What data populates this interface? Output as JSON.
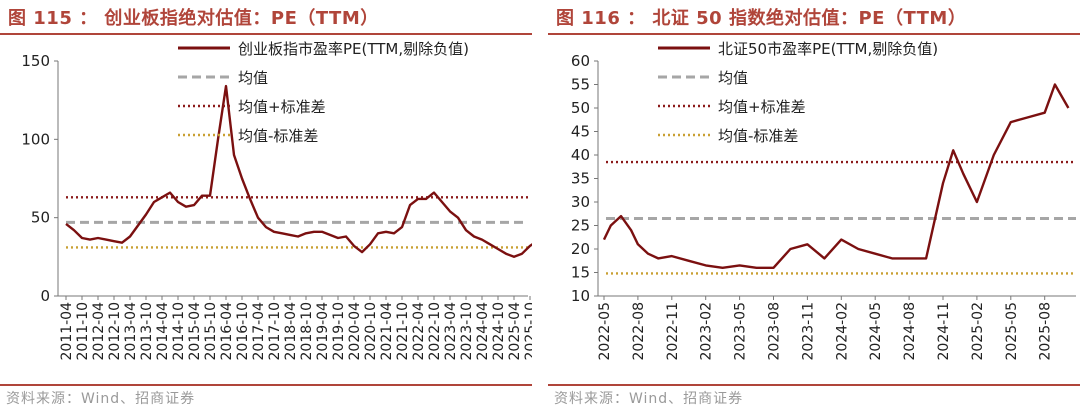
{
  "charts": [
    {
      "figure_title": "图 115 ： 创业板指绝对估值：PE（TTM）",
      "source": "资料来源：Wind、招商证券",
      "chart_data": {
        "type": "line",
        "ylim": [
          0,
          150
        ],
        "yticks": [
          "0",
          "50",
          "100",
          "150"
        ],
        "xticks": [
          "2011-04",
          "2011-10",
          "2012-04",
          "2012-10",
          "2013-04",
          "2013-10",
          "2014-04",
          "2014-10",
          "2015-04",
          "2015-10",
          "2016-04",
          "2016-10",
          "2017-04",
          "2017-10",
          "2018-04",
          "2018-10",
          "2019-04",
          "2019-10",
          "2020-04",
          "2020-10",
          "2021-04",
          "2021-10",
          "2022-04",
          "2022-10",
          "2023-04",
          "2023-10",
          "2024-04",
          "2024-10",
          "2025-04",
          "2025-10"
        ],
        "legend": [
          "创业板指市盈率PE(TTM,剔除负值)",
          "均值",
          "均值+标准差",
          "均值-标准差"
        ],
        "legend_position": "top-right",
        "series": [
          {
            "name": "创业板指市盈率PE(TTM,剔除负值)",
            "color": "#7b1010",
            "x": [
              0,
              0.5,
              1,
              1.5,
              2,
              2.5,
              3,
              3.5,
              4,
              4.5,
              5,
              5.5,
              6,
              6.5,
              7,
              7.5,
              8,
              8.5,
              9,
              9.5,
              10,
              10.5,
              11,
              11.5,
              12,
              12.5,
              13,
              13.5,
              14,
              14.5,
              15,
              15.5,
              16,
              16.5,
              17,
              17.5,
              18,
              18.5,
              19,
              19.5,
              20,
              20.5,
              21,
              21.5,
              22,
              22.5,
              23,
              23.5,
              24,
              24.5,
              25,
              25.5,
              26,
              26.5,
              27,
              27.5,
              28,
              28.5,
              29,
              29.3
            ],
            "y": [
              46,
              42,
              37,
              36,
              37,
              36,
              35,
              34,
              38,
              45,
              52,
              60,
              63,
              66,
              60,
              57,
              58,
              64,
              64,
              100,
              134,
              90,
              75,
              62,
              50,
              44,
              41,
              40,
              39,
              38,
              40,
              41,
              41,
              39,
              37,
              38,
              32,
              28,
              33,
              40,
              41,
              40,
              44,
              58,
              62,
              62,
              66,
              60,
              54,
              50,
              42,
              38,
              36,
              33,
              30,
              27,
              25,
              27,
              32,
              34
            ]
          },
          {
            "name": "均值",
            "color": "#a6a6a6",
            "constant": 47
          },
          {
            "name": "均值+标准差",
            "color": "#8b1a1a",
            "constant": 63
          },
          {
            "name": "均值-标准差",
            "color": "#c9a033",
            "constant": 31
          }
        ]
      }
    },
    {
      "figure_title": "图 116 ： 北证 50 指数绝对估值：PE（TTM）",
      "source": "资料来源：Wind、招商证券",
      "chart_data": {
        "type": "line",
        "ylim": [
          10,
          60
        ],
        "yticks": [
          "10",
          "15",
          "20",
          "25",
          "30",
          "35",
          "40",
          "45",
          "50",
          "55",
          "60"
        ],
        "xticks": [
          "2022-05",
          "2022-08",
          "2022-11",
          "2023-02",
          "2023-05",
          "2023-08",
          "2023-11",
          "2024-02",
          "2024-05",
          "2024-08",
          "2024-11",
          "2025-02",
          "2025-05",
          "2025-08"
        ],
        "legend": [
          "北证50市盈率PE(TTM,剔除负值)",
          "均值",
          "均值+标准差",
          "均值-标准差"
        ],
        "legend_position": "top-right",
        "series": [
          {
            "name": "北证50市盈率PE(TTM,剔除负值)",
            "color": "#7b1010",
            "x": [
              0,
              0.2,
              0.5,
              0.8,
              1,
              1.3,
              1.6,
              2,
              2.5,
              3,
              3.5,
              4,
              4.5,
              5,
              5.5,
              6,
              6.5,
              7,
              7.5,
              8,
              8.5,
              9,
              9.5,
              10,
              10.3,
              10.6,
              11,
              11.5,
              12,
              12.5,
              13,
              13.3,
              13.7
            ],
            "y": [
              22,
              25,
              27,
              24,
              21,
              19,
              18,
              18.5,
              17.5,
              16.5,
              16,
              16.5,
              16,
              16,
              20,
              21,
              18,
              22,
              20,
              19,
              18,
              18,
              18,
              34,
              41,
              36,
              30,
              40,
              47,
              48,
              49,
              55,
              50
            ]
          },
          {
            "name": "均值",
            "color": "#a6a6a6",
            "constant": 26.5
          },
          {
            "name": "均值+标准差",
            "color": "#8b1a1a",
            "constant": 38.5
          },
          {
            "name": "均值-标准差",
            "color": "#c9a033",
            "constant": 14.8
          }
        ]
      }
    }
  ]
}
